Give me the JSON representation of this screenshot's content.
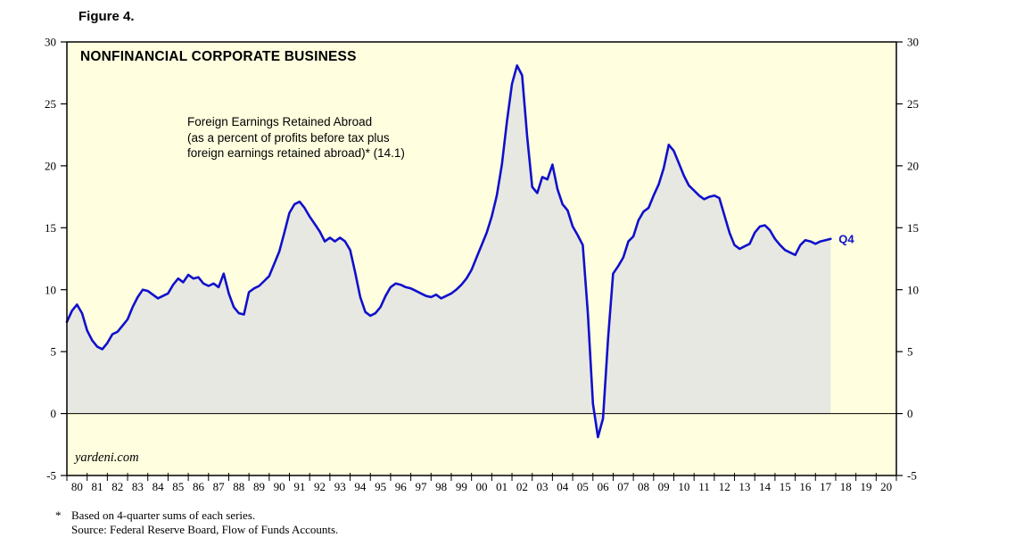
{
  "figure": {
    "label": "Figure 4."
  },
  "annotation": {
    "lines": [
      "Foreign Earnings Retained Abroad",
      "(as a percent of profits before tax plus",
      "foreign earnings retained abroad)* (14.1)"
    ]
  },
  "watermark": "yardeni.com",
  "footnote": {
    "star": "*",
    "line1": "Based on 4-quarter sums of each series.",
    "line2": "Source: Federal Reserve Board, Flow of Funds Accounts."
  },
  "chart_data": {
    "type": "area",
    "title": "NONFINANCIAL CORPORATE BUSINESS",
    "series_name": "Foreign Earnings Retained Abroad (as a percent of profits before tax plus foreign earnings retained abroad)",
    "latest_label": "Q4",
    "latest_value": 14.1,
    "x_domain": [
      1980,
      2021
    ],
    "ylim": [
      -5,
      30
    ],
    "y_ticks": [
      -5,
      0,
      5,
      10,
      15,
      20,
      25,
      30
    ],
    "x_tick_labels": [
      "80",
      "81",
      "82",
      "83",
      "84",
      "85",
      "86",
      "87",
      "88",
      "89",
      "90",
      "91",
      "92",
      "93",
      "94",
      "95",
      "96",
      "97",
      "98",
      "99",
      "00",
      "01",
      "02",
      "03",
      "04",
      "05",
      "06",
      "07",
      "08",
      "09",
      "10",
      "11",
      "12",
      "13",
      "14",
      "15",
      "16",
      "17",
      "18",
      "19",
      "20"
    ],
    "grid": false,
    "legend": "none",
    "colors": {
      "line": "#1010cc",
      "fill": "#e8e8e2",
      "plot_bg": "#ffffdf",
      "axis": "#000000"
    },
    "points": [
      [
        1980,
        7.4
      ],
      [
        1980.25,
        8.3
      ],
      [
        1980.5,
        8.8
      ],
      [
        1980.75,
        8.1
      ],
      [
        1981,
        6.7
      ],
      [
        1981.25,
        5.9
      ],
      [
        1981.5,
        5.4
      ],
      [
        1981.75,
        5.2
      ],
      [
        1982,
        5.7
      ],
      [
        1982.25,
        6.4
      ],
      [
        1982.5,
        6.6
      ],
      [
        1982.75,
        7.1
      ],
      [
        1983,
        7.6
      ],
      [
        1983.25,
        8.6
      ],
      [
        1983.5,
        9.4
      ],
      [
        1983.75,
        10.0
      ],
      [
        1984,
        9.9
      ],
      [
        1984.25,
        9.6
      ],
      [
        1984.5,
        9.3
      ],
      [
        1984.75,
        9.5
      ],
      [
        1985,
        9.7
      ],
      [
        1985.25,
        10.4
      ],
      [
        1985.5,
        10.9
      ],
      [
        1985.75,
        10.6
      ],
      [
        1986,
        11.2
      ],
      [
        1986.25,
        10.9
      ],
      [
        1986.5,
        11.0
      ],
      [
        1986.75,
        10.5
      ],
      [
        1987,
        10.3
      ],
      [
        1987.25,
        10.5
      ],
      [
        1987.5,
        10.2
      ],
      [
        1987.75,
        11.3
      ],
      [
        1988,
        9.7
      ],
      [
        1988.25,
        8.6
      ],
      [
        1988.5,
        8.1
      ],
      [
        1988.75,
        8.0
      ],
      [
        1989,
        9.8
      ],
      [
        1989.25,
        10.1
      ],
      [
        1989.5,
        10.3
      ],
      [
        1989.75,
        10.7
      ],
      [
        1990,
        11.1
      ],
      [
        1990.25,
        12.1
      ],
      [
        1990.5,
        13.1
      ],
      [
        1990.75,
        14.6
      ],
      [
        1991,
        16.2
      ],
      [
        1991.25,
        16.9
      ],
      [
        1991.5,
        17.1
      ],
      [
        1991.75,
        16.6
      ],
      [
        1992,
        15.9
      ],
      [
        1992.25,
        15.3
      ],
      [
        1992.5,
        14.7
      ],
      [
        1992.75,
        13.9
      ],
      [
        1993,
        14.2
      ],
      [
        1993.25,
        13.9
      ],
      [
        1993.5,
        14.2
      ],
      [
        1993.75,
        13.9
      ],
      [
        1994,
        13.2
      ],
      [
        1994.25,
        11.4
      ],
      [
        1994.5,
        9.4
      ],
      [
        1994.75,
        8.2
      ],
      [
        1995,
        7.9
      ],
      [
        1995.25,
        8.1
      ],
      [
        1995.5,
        8.6
      ],
      [
        1995.75,
        9.5
      ],
      [
        1996,
        10.2
      ],
      [
        1996.25,
        10.5
      ],
      [
        1996.5,
        10.4
      ],
      [
        1996.75,
        10.2
      ],
      [
        1997,
        10.1
      ],
      [
        1997.25,
        9.9
      ],
      [
        1997.5,
        9.7
      ],
      [
        1997.75,
        9.5
      ],
      [
        1998,
        9.4
      ],
      [
        1998.25,
        9.6
      ],
      [
        1998.5,
        9.3
      ],
      [
        1998.75,
        9.5
      ],
      [
        1999,
        9.7
      ],
      [
        1999.25,
        10.0
      ],
      [
        1999.5,
        10.4
      ],
      [
        1999.75,
        10.9
      ],
      [
        2000,
        11.6
      ],
      [
        2000.25,
        12.6
      ],
      [
        2000.5,
        13.6
      ],
      [
        2000.75,
        14.6
      ],
      [
        2001,
        15.9
      ],
      [
        2001.25,
        17.6
      ],
      [
        2001.5,
        20.1
      ],
      [
        2001.75,
        23.6
      ],
      [
        2002,
        26.6
      ],
      [
        2002.25,
        28.1
      ],
      [
        2002.5,
        27.3
      ],
      [
        2002.75,
        22.4
      ],
      [
        2003,
        18.3
      ],
      [
        2003.25,
        17.8
      ],
      [
        2003.5,
        19.1
      ],
      [
        2003.75,
        18.9
      ],
      [
        2004,
        20.1
      ],
      [
        2004.25,
        18.1
      ],
      [
        2004.5,
        16.9
      ],
      [
        2004.75,
        16.4
      ],
      [
        2005,
        15.1
      ],
      [
        2005.25,
        14.4
      ],
      [
        2005.5,
        13.6
      ],
      [
        2005.75,
        8.1
      ],
      [
        2006,
        0.8
      ],
      [
        2006.25,
        -1.9
      ],
      [
        2006.5,
        -0.4
      ],
      [
        2006.75,
        6.1
      ],
      [
        2007,
        11.3
      ],
      [
        2007.25,
        11.9
      ],
      [
        2007.5,
        12.6
      ],
      [
        2007.75,
        13.9
      ],
      [
        2008,
        14.3
      ],
      [
        2008.25,
        15.6
      ],
      [
        2008.5,
        16.3
      ],
      [
        2008.75,
        16.6
      ],
      [
        2009,
        17.6
      ],
      [
        2009.25,
        18.5
      ],
      [
        2009.5,
        19.8
      ],
      [
        2009.75,
        21.7
      ],
      [
        2010,
        21.2
      ],
      [
        2010.25,
        20.2
      ],
      [
        2010.5,
        19.2
      ],
      [
        2010.75,
        18.4
      ],
      [
        2011,
        18.0
      ],
      [
        2011.25,
        17.6
      ],
      [
        2011.5,
        17.3
      ],
      [
        2011.75,
        17.5
      ],
      [
        2012,
        17.6
      ],
      [
        2012.25,
        17.4
      ],
      [
        2012.5,
        16.0
      ],
      [
        2012.75,
        14.6
      ],
      [
        2013,
        13.6
      ],
      [
        2013.25,
        13.3
      ],
      [
        2013.5,
        13.5
      ],
      [
        2013.75,
        13.7
      ],
      [
        2014,
        14.6
      ],
      [
        2014.25,
        15.1
      ],
      [
        2014.5,
        15.2
      ],
      [
        2014.75,
        14.8
      ],
      [
        2015,
        14.1
      ],
      [
        2015.25,
        13.6
      ],
      [
        2015.5,
        13.2
      ],
      [
        2015.75,
        13.0
      ],
      [
        2016,
        12.8
      ],
      [
        2016.25,
        13.6
      ],
      [
        2016.5,
        14.0
      ],
      [
        2016.75,
        13.9
      ],
      [
        2017,
        13.7
      ],
      [
        2017.25,
        13.9
      ],
      [
        2017.5,
        14.0
      ],
      [
        2017.75,
        14.1
      ]
    ]
  }
}
